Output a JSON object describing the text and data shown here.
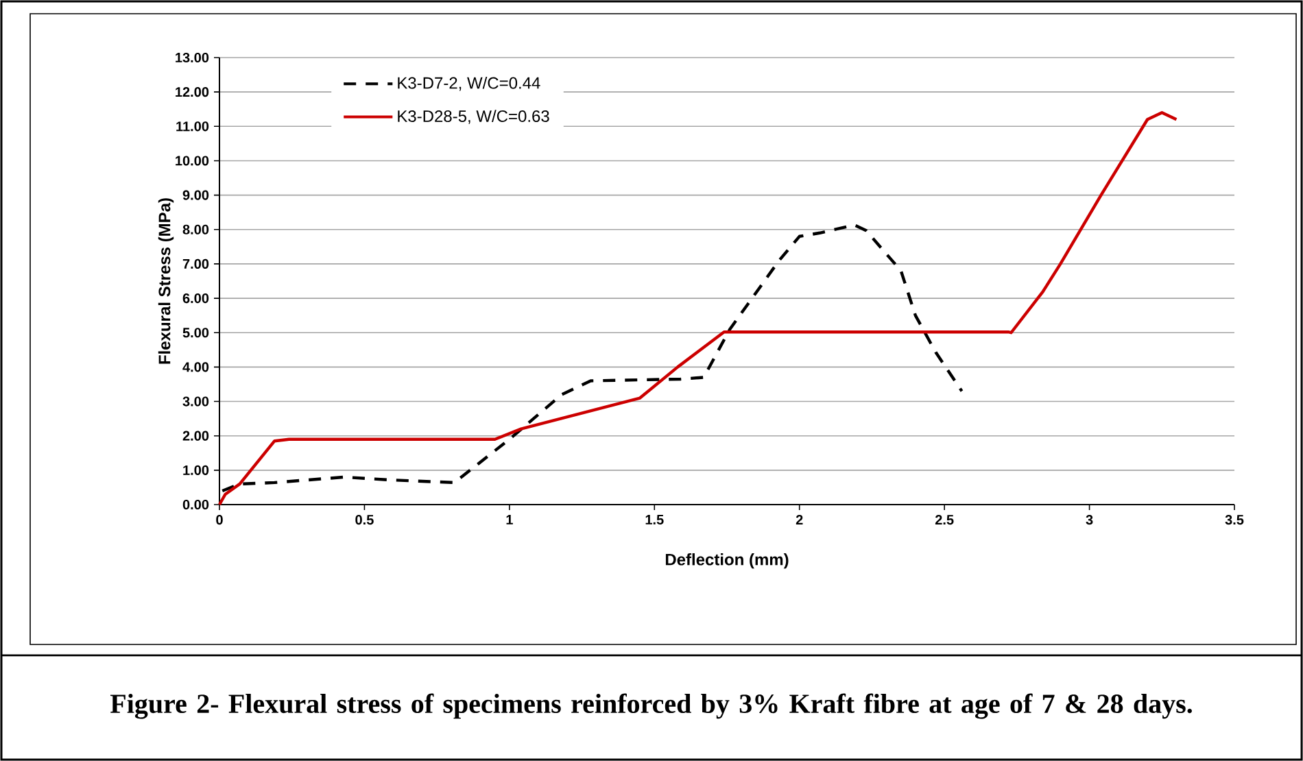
{
  "chart_data": {
    "type": "line",
    "xlabel": "Deflection (mm)",
    "ylabel": "Flexural Stress (MPa)",
    "annotations": [
      "Figure 2- Flexural stress of specimens reinforced by 3% Kraft fibre at age of 7 & 28 days."
    ],
    "xlim": [
      0,
      3.5
    ],
    "xticks": [
      0,
      0.5,
      1,
      1.5,
      2,
      2.5,
      3,
      3.5
    ],
    "ylim": [
      0,
      13
    ],
    "yticks": [
      {
        "value": 0,
        "label": "0.00"
      },
      {
        "value": 1,
        "label": "1.00"
      },
      {
        "value": 2,
        "label": "2.00"
      },
      {
        "value": 3,
        "label": "3.00"
      },
      {
        "value": 4,
        "label": "4.00"
      },
      {
        "value": 5,
        "label": "5.00"
      },
      {
        "value": 6,
        "label": "6.00"
      },
      {
        "value": 7,
        "label": "7.00"
      },
      {
        "value": 8,
        "label": "8.00"
      },
      {
        "value": 9,
        "label": "9.00"
      },
      {
        "value": 10,
        "label": "10.00"
      },
      {
        "value": 11,
        "label": "11.00"
      },
      {
        "value": 12,
        "label": "12.00"
      },
      {
        "value": 13,
        "label": "13.00"
      }
    ],
    "grid": "y",
    "legend": "top left",
    "series": [
      {
        "name": "K3-D7-2, W/C=0.44",
        "color": "#000000",
        "line_style": "dashed",
        "x": [
          0.01,
          0.07,
          0.19,
          0.43,
          0.58,
          0.81,
          1.0,
          1.18,
          1.28,
          1.59,
          1.67,
          1.76,
          1.93,
          2.0,
          2.07,
          2.19,
          2.23,
          2.35,
          2.4,
          2.47,
          2.56
        ],
        "values": [
          0.4,
          0.6,
          0.64,
          0.8,
          0.72,
          0.64,
          1.9,
          3.2,
          3.6,
          3.65,
          3.7,
          5.1,
          7.1,
          7.8,
          7.9,
          8.13,
          7.97,
          6.8,
          5.5,
          4.43,
          3.3
        ]
      },
      {
        "name": "K3-D28-5, W/C=0.63",
        "color": "#cc0000",
        "line_style": "solid",
        "x": [
          0,
          0.02,
          0.07,
          0.19,
          0.24,
          0.95,
          1.04,
          1.45,
          1.58,
          1.74,
          2.72,
          2.73,
          2.84,
          2.9,
          3.04,
          3.2,
          3.25,
          3.3
        ],
        "values": [
          0,
          0.3,
          0.6,
          1.85,
          1.9,
          1.9,
          2.2,
          3.1,
          4.0,
          5.02,
          5.02,
          5.0,
          6.2,
          7.0,
          9.0,
          11.2,
          11.4,
          11.2
        ]
      }
    ]
  }
}
